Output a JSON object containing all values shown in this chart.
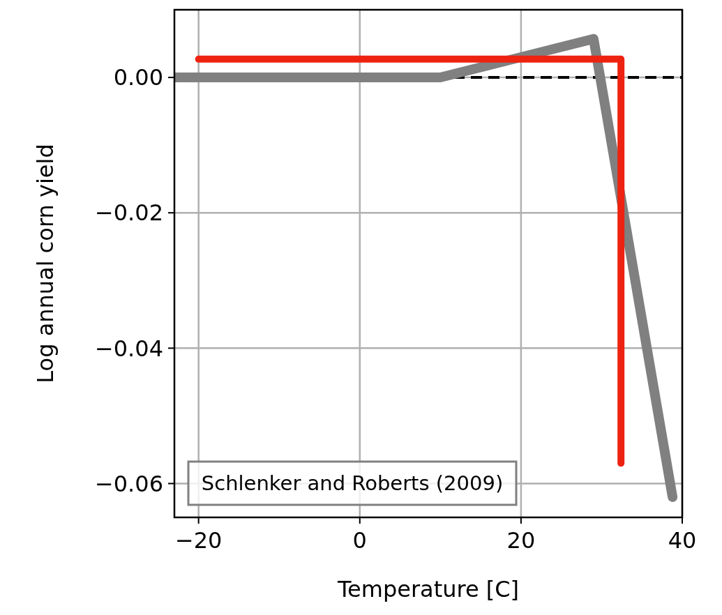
{
  "chart_data": {
    "type": "line",
    "xlabel": "Temperature [C]",
    "ylabel": "Log annual corn yield",
    "xlim": [
      -23,
      40
    ],
    "xticks": [
      -20,
      0,
      20,
      40
    ],
    "ylim": [
      -0.065,
      0.01
    ],
    "yticks": [
      {
        "value": 0,
        "label": "0.00"
      },
      {
        "value": -0.02,
        "label": "−0.02"
      },
      {
        "value": -0.04,
        "label": "−0.04"
      },
      {
        "value": -0.06,
        "label": "−0.06"
      }
    ],
    "grid": true,
    "marker": "none",
    "series": [
      {
        "color": "#808080",
        "x": [
          -23,
          10,
          29,
          38.8
        ],
        "values": [
          0,
          0,
          0.0057,
          -0.062
        ]
      },
      {
        "color": "#ee2211",
        "x": [
          -20,
          32.4,
          32.4
        ],
        "values": [
          0.0027,
          0.0027,
          -0.057
        ]
      }
    ],
    "ref_lines": [
      {
        "axis": "y",
        "value": 0,
        "color": "#000000",
        "line_style": "dashed"
      }
    ],
    "annotations": [
      "Schlenker and Roberts (2009)"
    ]
  }
}
